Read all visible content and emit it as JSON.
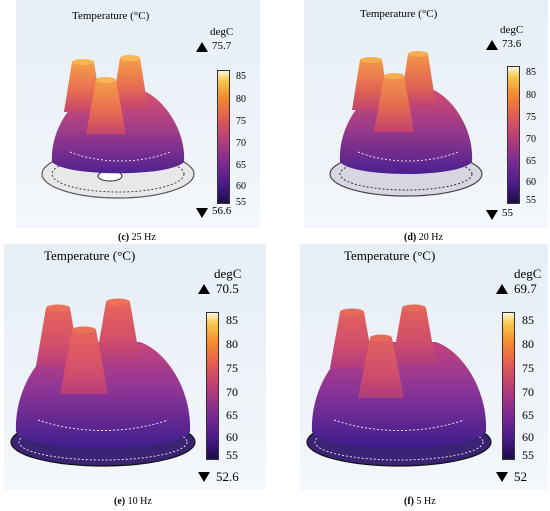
{
  "panels": [
    {
      "title": "Temperature (°C)",
      "unit": "degC",
      "max": "75.7",
      "min": "56.6",
      "caption_letter": "(c)",
      "caption_freq": "25 Hz",
      "ticks": [
        "85",
        "80",
        "75",
        "70",
        "65",
        "60",
        "55"
      ]
    },
    {
      "title": "Temperature (°C)",
      "unit": "degC",
      "max": "73.6",
      "min": "55",
      "caption_letter": "(d)",
      "caption_freq": "20 Hz",
      "ticks": [
        "85",
        "80",
        "75",
        "70",
        "65",
        "60",
        "55"
      ]
    },
    {
      "title": "Temperature (°C)",
      "unit": "degC",
      "max": "70.5",
      "min": "52.6",
      "caption_letter": "(e)",
      "caption_freq": "10 Hz",
      "ticks": [
        "85",
        "80",
        "75",
        "70",
        "65",
        "60",
        "55"
      ]
    },
    {
      "title": "Temperature (°C)",
      "unit": "degC",
      "max": "69.7",
      "min": "52",
      "caption_letter": "(f)",
      "caption_freq": "5 Hz",
      "ticks": [
        "85",
        "80",
        "75",
        "70",
        "65",
        "60",
        "55"
      ]
    }
  ],
  "colors": {
    "scale_low": "#1d0c4a",
    "scale_mid": "#b53e7b",
    "scale_high": "#fcf8d8",
    "background": "#eef3f8"
  }
}
